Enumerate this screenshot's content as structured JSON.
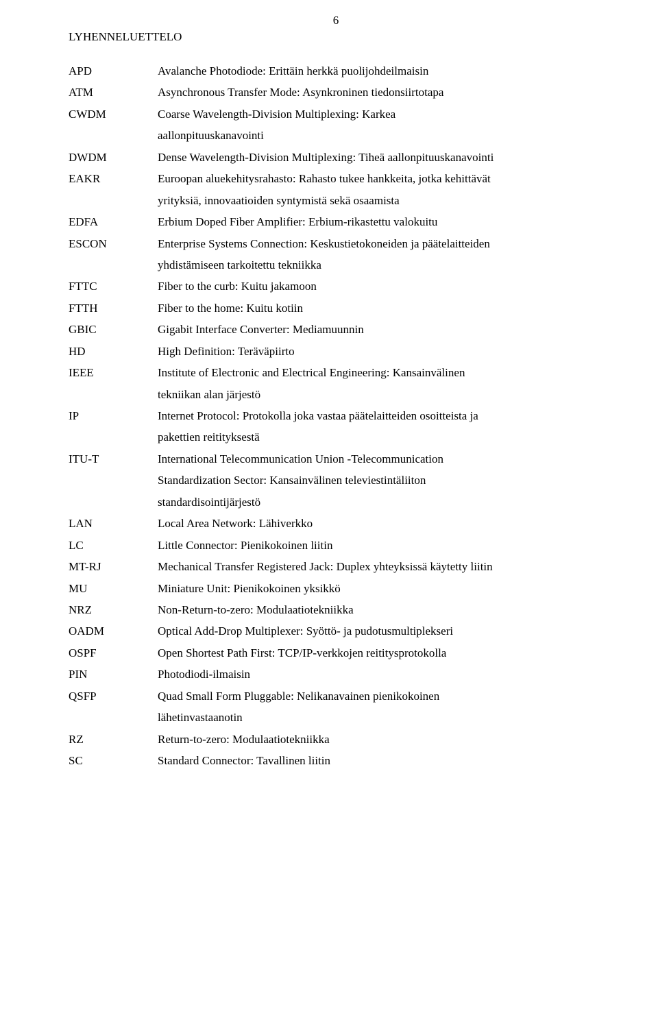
{
  "page_number": "6",
  "section_title": "LYHENNELUETTELO",
  "entries": [
    {
      "abbrev": "APD",
      "lines": [
        "Avalanche Photodiode: Erittäin herkkä puolijohdeilmaisin"
      ]
    },
    {
      "abbrev": "ATM",
      "lines": [
        "Asynchronous Transfer Mode: Asynkroninen tiedonsiirtotapa"
      ]
    },
    {
      "abbrev": "CWDM",
      "lines": [
        "Coarse Wavelength-Division Multiplexing: Karkea",
        "aallonpituuskanavointi"
      ]
    },
    {
      "abbrev": "DWDM",
      "lines": [
        "Dense Wavelength-Division Multiplexing: Tiheä aallonpituuskanavointi"
      ]
    },
    {
      "abbrev": "EAKR",
      "lines": [
        "Euroopan aluekehitysrahasto: Rahasto tukee hankkeita, jotka kehittävät",
        "yrityksiä, innovaatioiden syntymistä sekä osaamista"
      ]
    },
    {
      "abbrev": "EDFA",
      "lines": [
        "Erbium Doped Fiber Amplifier: Erbium-rikastettu valokuitu"
      ]
    },
    {
      "abbrev": "ESCON",
      "lines": [
        "Enterprise Systems Connection: Keskustietokoneiden ja päätelaitteiden",
        "yhdistämiseen tarkoitettu tekniikka"
      ]
    },
    {
      "abbrev": "FTTC",
      "lines": [
        "Fiber to the curb: Kuitu jakamoon"
      ]
    },
    {
      "abbrev": "FTTH",
      "lines": [
        "Fiber to the home: Kuitu kotiin"
      ]
    },
    {
      "abbrev": "GBIC",
      "lines": [
        "Gigabit Interface Converter: Mediamuunnin"
      ]
    },
    {
      "abbrev": "HD",
      "lines": [
        "High Definition: Teräväpiirto"
      ]
    },
    {
      "abbrev": "IEEE",
      "lines": [
        "Institute of Electronic and Electrical Engineering: Kansainvälinen",
        "tekniikan alan järjestö"
      ]
    },
    {
      "abbrev": "IP",
      "lines": [
        "Internet Protocol: Protokolla joka vastaa päätelaitteiden osoitteista ja",
        "pakettien reitityksestä"
      ]
    },
    {
      "abbrev": "ITU-T",
      "lines": [
        "International Telecommunication Union -Telecommunication",
        "Standardization Sector: Kansainvälinen televiestintäliiton",
        "standardisointijärjestö"
      ]
    },
    {
      "abbrev": "LAN",
      "lines": [
        "Local Area Network: Lähiverkko"
      ]
    },
    {
      "abbrev": "LC",
      "lines": [
        "Little Connector: Pienikokoinen liitin"
      ]
    },
    {
      "abbrev": "MT-RJ",
      "lines": [
        "Mechanical Transfer Registered Jack: Duplex yhteyksissä käytetty liitin"
      ]
    },
    {
      "abbrev": "MU",
      "lines": [
        "Miniature Unit: Pienikokoinen yksikkö"
      ]
    },
    {
      "abbrev": "NRZ",
      "lines": [
        "Non-Return-to-zero: Modulaatiotekniikka"
      ]
    },
    {
      "abbrev": "OADM",
      "lines": [
        "Optical Add-Drop Multiplexer: Syöttö- ja pudotusmultiplekseri"
      ]
    },
    {
      "abbrev": "OSPF",
      "lines": [
        "Open Shortest Path First: TCP/IP-verkkojen reititysprotokolla"
      ]
    },
    {
      "abbrev": "PIN",
      "lines": [
        "Photodiodi-ilmaisin"
      ]
    },
    {
      "abbrev": "QSFP",
      "lines": [
        "Quad Small Form Pluggable: Nelikanavainen pienikokoinen",
        "lähetinvastaanotin"
      ]
    },
    {
      "abbrev": "RZ",
      "lines": [
        "Return-to-zero: Modulaatiotekniikka"
      ]
    },
    {
      "abbrev": "SC",
      "lines": [
        "Standard Connector: Tavallinen liitin"
      ]
    }
  ]
}
